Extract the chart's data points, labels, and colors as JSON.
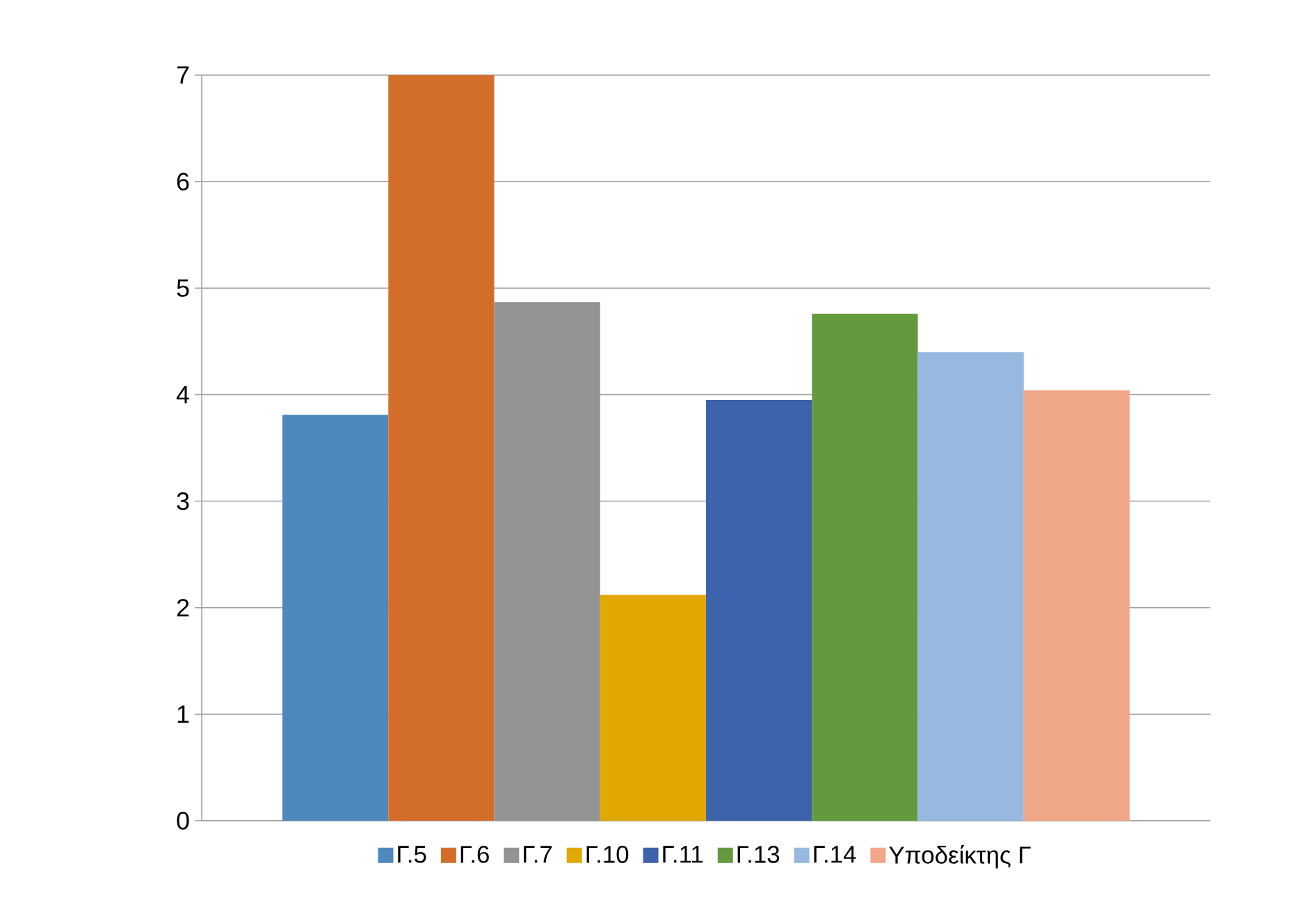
{
  "chart_data": {
    "type": "bar",
    "categories": [
      null
    ],
    "ylim": [
      0,
      7
    ],
    "yticks": [
      0,
      1,
      2,
      3,
      4,
      5,
      6,
      7
    ],
    "grid": "y",
    "legend": "bottom",
    "series": [
      {
        "name": "Γ.5",
        "color": "#4f88bc",
        "values": [
          3.81
        ]
      },
      {
        "name": "Γ.6",
        "color": "#d36e2a",
        "values": [
          7.0
        ]
      },
      {
        "name": "Γ.7",
        "color": "#939393",
        "values": [
          4.87
        ]
      },
      {
        "name": "Γ.10",
        "color": "#e0a800",
        "values": [
          2.12
        ]
      },
      {
        "name": "Γ.11",
        "color": "#3c63ab",
        "values": [
          3.95
        ]
      },
      {
        "name": "Γ.13",
        "color": "#639a3e",
        "values": [
          4.76
        ]
      },
      {
        "name": "Γ.14",
        "color": "#97b8df",
        "values": [
          4.4
        ]
      },
      {
        "name": "Υποδείκτης Γ",
        "color": "#f0a788",
        "values": [
          4.04
        ]
      }
    ]
  }
}
